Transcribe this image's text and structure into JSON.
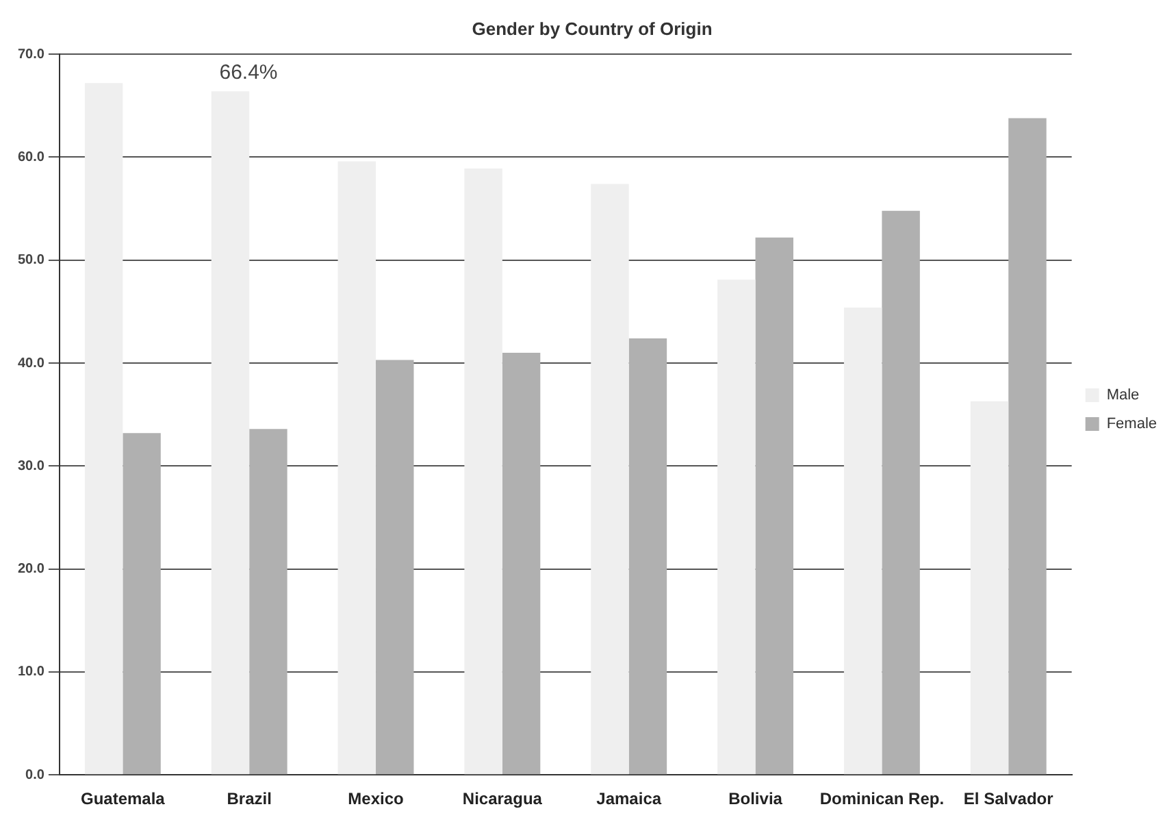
{
  "chart_data": {
    "type": "bar",
    "title": "Gender by Country of Origin",
    "categories": [
      "Guatemala",
      "Brazil",
      "Mexico",
      "Nicaragua",
      "Jamaica",
      "Bolivia",
      "Dominican Rep.",
      "El Salvador"
    ],
    "series": [
      {
        "name": "Male",
        "color": "#efefef",
        "values": [
          67.2,
          66.4,
          59.6,
          58.9,
          57.4,
          48.1,
          45.4,
          36.3
        ]
      },
      {
        "name": "Female",
        "color": "#b0b0b0",
        "values": [
          33.2,
          33.6,
          40.3,
          41.0,
          42.4,
          52.2,
          54.8,
          63.8
        ]
      }
    ],
    "ylim": [
      0,
      70
    ],
    "yticks": [
      {
        "value": 0,
        "label": "0.0"
      },
      {
        "value": 10,
        "label": "10.0"
      },
      {
        "value": 20,
        "label": "20.0"
      },
      {
        "value": 30,
        "label": "30.0"
      },
      {
        "value": 40,
        "label": "40.0"
      },
      {
        "value": 50,
        "label": "50.0"
      },
      {
        "value": 60,
        "label": "60.0"
      },
      {
        "value": 70,
        "label": "70.0"
      }
    ],
    "grid": "y",
    "legend": "right",
    "annotations": [
      {
        "text": "66.4%",
        "x": "Brazil",
        "y": 66.4
      }
    ]
  }
}
